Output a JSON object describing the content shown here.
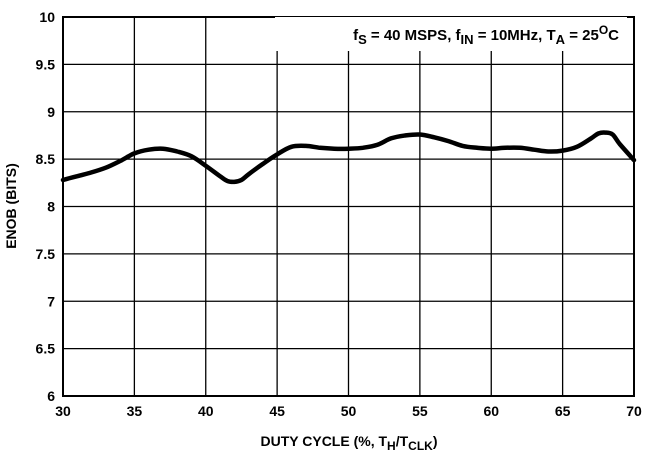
{
  "chart_data": {
    "type": "line",
    "xlabel": {
      "pre": "DUTY CYCLE (%, T",
      "sub1": "H",
      "mid": "/T",
      "sub2": "CLK",
      "post": ")"
    },
    "ylabel": "ENOB (BITS)",
    "xlim": [
      30,
      70
    ],
    "ylim": [
      6,
      10
    ],
    "x_ticks": [
      "30",
      "35",
      "40",
      "45",
      "50",
      "55",
      "60",
      "65",
      "70"
    ],
    "y_ticks": [
      "6",
      "6.5",
      "7",
      "7.5",
      "8",
      "8.5",
      "9",
      "9.5",
      "10"
    ],
    "grid": true,
    "annotation": {
      "f": "f",
      "s": "S",
      "fs_val": " = 40 MSPS, f",
      "in": "IN",
      "fin_val": " = 10MHz, T",
      "a": "A",
      "ta_val": " = 25",
      "deg": "O",
      "unit": "C"
    },
    "series": [
      {
        "color": "#000000",
        "x": [
          30,
          31,
          32,
          33,
          34,
          35,
          36,
          37,
          38,
          39,
          40,
          41,
          41.5,
          42,
          42.5,
          43,
          44,
          45,
          46,
          47,
          48,
          49,
          50,
          51,
          52,
          53,
          54,
          55,
          56,
          57,
          58,
          59,
          60,
          61,
          62,
          63,
          64,
          65,
          66,
          67,
          67.5,
          68,
          68.5,
          69,
          70
        ],
        "y": [
          8.28,
          8.32,
          8.36,
          8.41,
          8.48,
          8.56,
          8.6,
          8.61,
          8.58,
          8.53,
          8.43,
          8.32,
          8.27,
          8.26,
          8.28,
          8.34,
          8.45,
          8.55,
          8.63,
          8.64,
          8.62,
          8.61,
          8.61,
          8.62,
          8.65,
          8.72,
          8.75,
          8.76,
          8.73,
          8.69,
          8.64,
          8.62,
          8.61,
          8.62,
          8.62,
          8.6,
          8.58,
          8.59,
          8.63,
          8.72,
          8.77,
          8.78,
          8.76,
          8.66,
          8.49
        ]
      }
    ]
  }
}
